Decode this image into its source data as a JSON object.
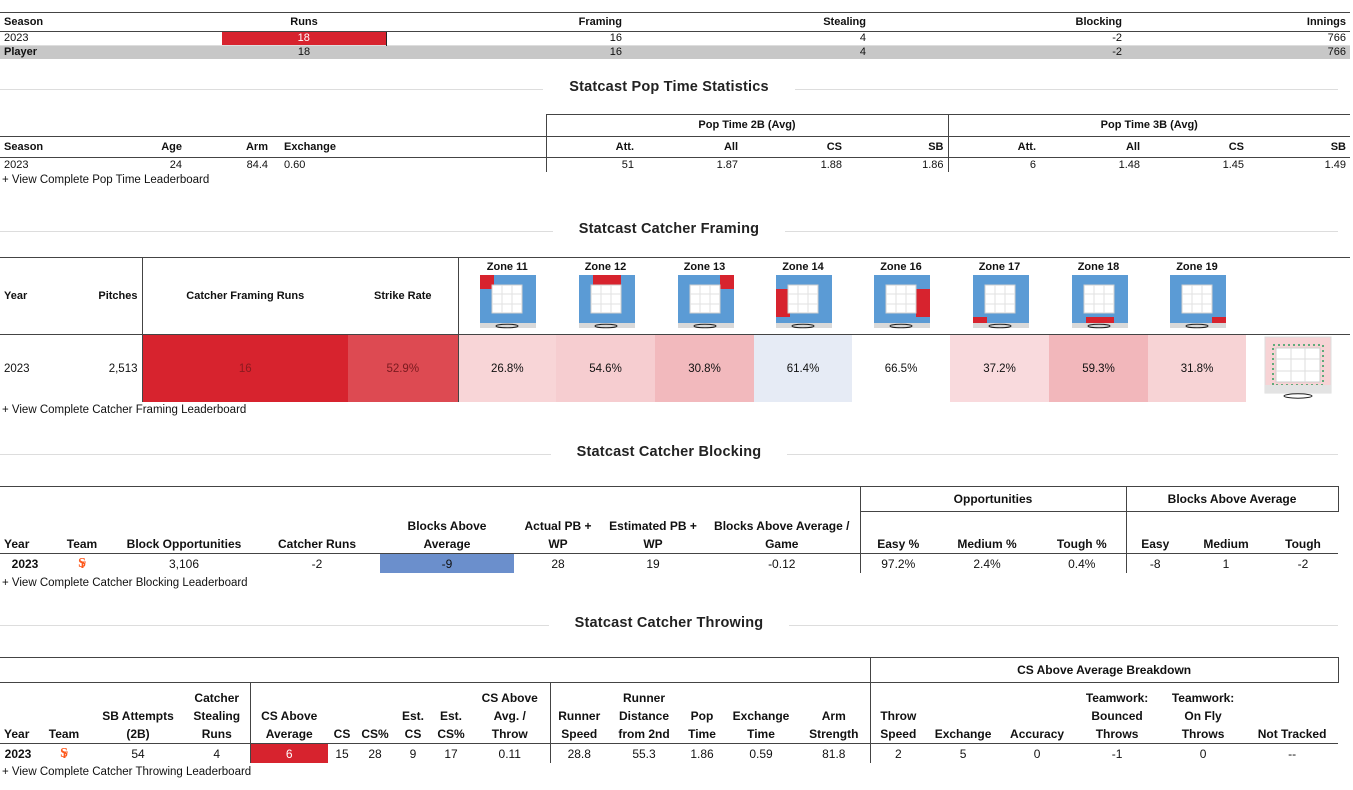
{
  "summary": {
    "headers": [
      "Season",
      "Runs",
      "Framing",
      "Stealing",
      "Blocking",
      "Innings"
    ],
    "rows": [
      {
        "season": "2023",
        "runs": "18",
        "framing": "16",
        "stealing": "4",
        "blocking": "-2",
        "innings": "766"
      },
      {
        "season": "Player",
        "runs": "18",
        "framing": "16",
        "stealing": "4",
        "blocking": "-2",
        "innings": "766"
      }
    ]
  },
  "pop_time": {
    "title": "Statcast Pop Time Statistics",
    "group_2b": "Pop Time 2B (Avg)",
    "group_3b": "Pop Time 3B (Avg)",
    "headers": [
      "Season",
      "Age",
      "Arm",
      "Exchange",
      "Att.",
      "All",
      "CS",
      "SB",
      "Att.",
      "All",
      "CS",
      "SB"
    ],
    "row": [
      "2023",
      "24",
      "84.4",
      "0.60",
      "51",
      "1.87",
      "1.88",
      "1.86",
      "6",
      "1.48",
      "1.45",
      "1.49"
    ],
    "link": "+ View Complete Pop Time Leaderboard"
  },
  "framing": {
    "title": "Statcast Catcher Framing",
    "headers": {
      "year": "Year",
      "pitches": "Pitches",
      "runs": "Catcher Framing Runs",
      "strike_rate": "Strike Rate"
    },
    "zones": [
      "Zone 11",
      "Zone 12",
      "Zone 13",
      "Zone 14",
      "Zone 16",
      "Zone 17",
      "Zone 18",
      "Zone 19"
    ],
    "row": {
      "year": "2023",
      "pitches": "2,513",
      "runs": "16",
      "strike_rate": "52.9%",
      "zone_values": [
        "26.8%",
        "54.6%",
        "30.8%",
        "61.4%",
        "66.5%",
        "37.2%",
        "59.3%",
        "31.8%"
      ]
    },
    "colors": {
      "runs": "#d7232e",
      "strike_rate": "#dd4a52",
      "zone_bg": [
        "#f8d5d7",
        "#f6cdd0",
        "#f2b9bd",
        "#e6ebf5",
        "#ffffff",
        "#f9dadd",
        "#f2b7bb",
        "#f7d3d5"
      ]
    },
    "link": "+ View Complete Catcher Framing Leaderboard"
  },
  "blocking": {
    "title": "Statcast Catcher Blocking",
    "group_opp": "Opportunities",
    "group_baa": "Blocks Above Average",
    "headers": [
      "Year",
      "Team",
      "Block Opportunities",
      "Catcher Runs",
      "Blocks Above Average",
      "Actual PB + WP",
      "Estimated PB + WP",
      "Blocks Above Average / Game",
      "Easy %",
      "Medium %",
      "Tough %",
      "Easy",
      "Medium",
      "Tough"
    ],
    "row": [
      "2023",
      "SF",
      "3,106",
      "-2",
      "-9",
      "28",
      "19",
      "-0.12",
      "97.2%",
      "2.4%",
      "0.4%",
      "-8",
      "1",
      "-2"
    ],
    "colors": {
      "blocks_above_average": "#6b8fcc"
    },
    "link": "+ View Complete Catcher Blocking Leaderboard"
  },
  "throwing": {
    "title": "Statcast Catcher Throwing",
    "group_breakdown": "CS Above Average Breakdown",
    "headers": [
      "Year",
      "Team",
      "SB Attempts (2B)",
      "Catcher Stealing Runs",
      "CS Above Average",
      "CS",
      "CS%",
      "Est. CS",
      "Est. CS%",
      "CS Above Avg. / Throw",
      "Runner Speed",
      "Runner Distance from 2nd",
      "Pop Time",
      "Exchange Time",
      "Arm Strength",
      "Throw Speed",
      "Exchange",
      "Accuracy",
      "Teamwork: Bounced Throws",
      "Teamwork: On Fly Throws",
      "Not Tracked"
    ],
    "row": [
      "2023",
      "SF",
      "54",
      "4",
      "6",
      "15",
      "28",
      "9",
      "17",
      "0.11",
      "28.8",
      "55.3",
      "1.86",
      "0.59",
      "81.8",
      "2",
      "5",
      "0",
      "-1",
      "0",
      "--"
    ],
    "colors": {
      "cs_above_average": "#d7232e"
    },
    "link": "+ View Complete Catcher Throwing Leaderboard"
  },
  "icons": {
    "team_logo": "sf-giants-logo-icon"
  }
}
